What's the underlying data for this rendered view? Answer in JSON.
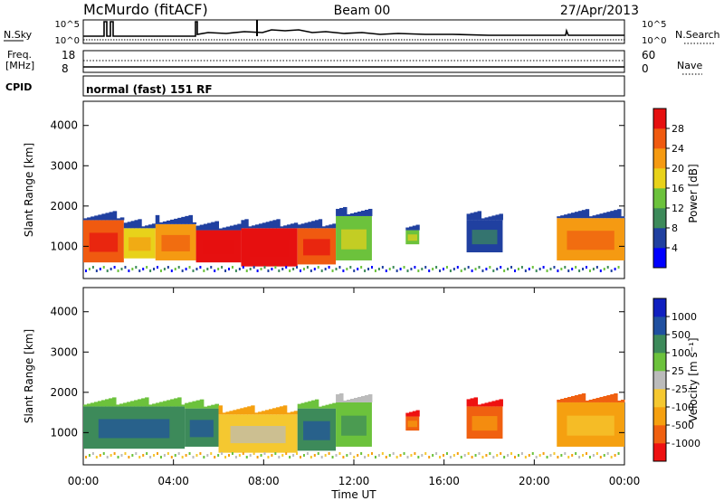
{
  "header": {
    "station": "McMurdo (fitACF)",
    "beam": "Beam 00",
    "date": "27/Apr/2013"
  },
  "noise_panel": {
    "left_label": "N.Sky",
    "right_label": "N.Search",
    "left_ticks": [
      "10^5",
      "10^0"
    ],
    "right_ticks": [
      "10^5",
      "10^0"
    ]
  },
  "freq_panel": {
    "left_label_line1": "Freq.",
    "left_label_line2": "[MHz]",
    "right_label": "Nave",
    "left_ticks": [
      "18",
      "8"
    ],
    "right_ticks": [
      "60",
      "0"
    ]
  },
  "cpid_panel": {
    "label": "CPID",
    "text": "normal (fast) 151 RF"
  },
  "colors": {
    "power_scale": [
      "#0000ff",
      "#2040a0",
      "#3d8a5a",
      "#6cc23c",
      "#e8d21a",
      "#f59a12",
      "#f05a10",
      "#e61010"
    ],
    "velocity_scale": [
      "#ee1111",
      "#f06010",
      "#f5a010",
      "#f5c830",
      "#bbbbbb",
      "#6cc23c",
      "#3d8a5a",
      "#2050a0",
      "#1020c0"
    ]
  },
  "chart_data": [
    {
      "type": "heatmap",
      "name": "power",
      "ylabel": "Slant Range [km]",
      "yticks": [
        1000,
        2000,
        3000,
        4000
      ],
      "ylim": [
        200,
        4600
      ],
      "xlim": [
        0,
        24
      ],
      "colorbar_label": "Power [dB]",
      "colorbar_ticks": [
        "4",
        "8",
        "12",
        "16",
        "20",
        "24",
        "28"
      ],
      "bands": [
        {
          "x0": 0.0,
          "x1": 1.8,
          "r0": 600,
          "r1": 1650,
          "level": 6
        },
        {
          "x0": 1.8,
          "x1": 3.2,
          "r0": 700,
          "r1": 1450,
          "level": 4
        },
        {
          "x0": 3.2,
          "x1": 5.0,
          "r0": 650,
          "r1": 1550,
          "level": 5
        },
        {
          "x0": 5.0,
          "x1": 7.0,
          "r0": 600,
          "r1": 1400,
          "level": 7
        },
        {
          "x0": 7.0,
          "x1": 9.5,
          "r0": 500,
          "r1": 1450,
          "level": 7
        },
        {
          "x0": 9.5,
          "x1": 11.2,
          "r0": 550,
          "r1": 1450,
          "level": 6
        },
        {
          "x0": 11.2,
          "x1": 12.8,
          "r0": 650,
          "r1": 1750,
          "level": 3
        },
        {
          "x0": 14.3,
          "x1": 14.9,
          "r0": 1050,
          "r1": 1400,
          "level": 3
        },
        {
          "x0": 17.0,
          "x1": 18.6,
          "r0": 850,
          "r1": 1650,
          "level": 1
        },
        {
          "x0": 21.0,
          "x1": 24.0,
          "r0": 650,
          "r1": 1700,
          "level": 5
        }
      ]
    },
    {
      "type": "heatmap",
      "name": "velocity",
      "ylabel": "Slant Range [km]",
      "yticks": [
        1000,
        2000,
        3000,
        4000
      ],
      "ylim": [
        200,
        4600
      ],
      "xlim": [
        0,
        24
      ],
      "xlabel": "Time UT",
      "xticks": [
        "00:00",
        "04:00",
        "08:00",
        "12:00",
        "16:00",
        "20:00",
        "00:00"
      ],
      "colorbar_label": "Velocity [m s⁻¹]",
      "colorbar_ticks": [
        "-1000",
        "-500",
        "-100",
        "-25",
        "25",
        "100",
        "500",
        "1000"
      ],
      "bands": [
        {
          "x0": 0.0,
          "x1": 4.5,
          "r0": 600,
          "r1": 1650,
          "level": 6
        },
        {
          "x0": 4.5,
          "x1": 6.0,
          "r0": 650,
          "r1": 1600,
          "level": 6
        },
        {
          "x0": 6.0,
          "x1": 9.5,
          "r0": 500,
          "r1": 1450,
          "level": 3
        },
        {
          "x0": 9.5,
          "x1": 11.2,
          "r0": 550,
          "r1": 1600,
          "level": 6
        },
        {
          "x0": 11.2,
          "x1": 12.8,
          "r0": 650,
          "r1": 1750,
          "level": 5
        },
        {
          "x0": 14.3,
          "x1": 14.9,
          "r0": 1050,
          "r1": 1400,
          "level": 1
        },
        {
          "x0": 17.0,
          "x1": 18.6,
          "r0": 850,
          "r1": 1650,
          "level": 1
        },
        {
          "x0": 21.0,
          "x1": 24.0,
          "r0": 650,
          "r1": 1750,
          "level": 2
        }
      ]
    }
  ]
}
